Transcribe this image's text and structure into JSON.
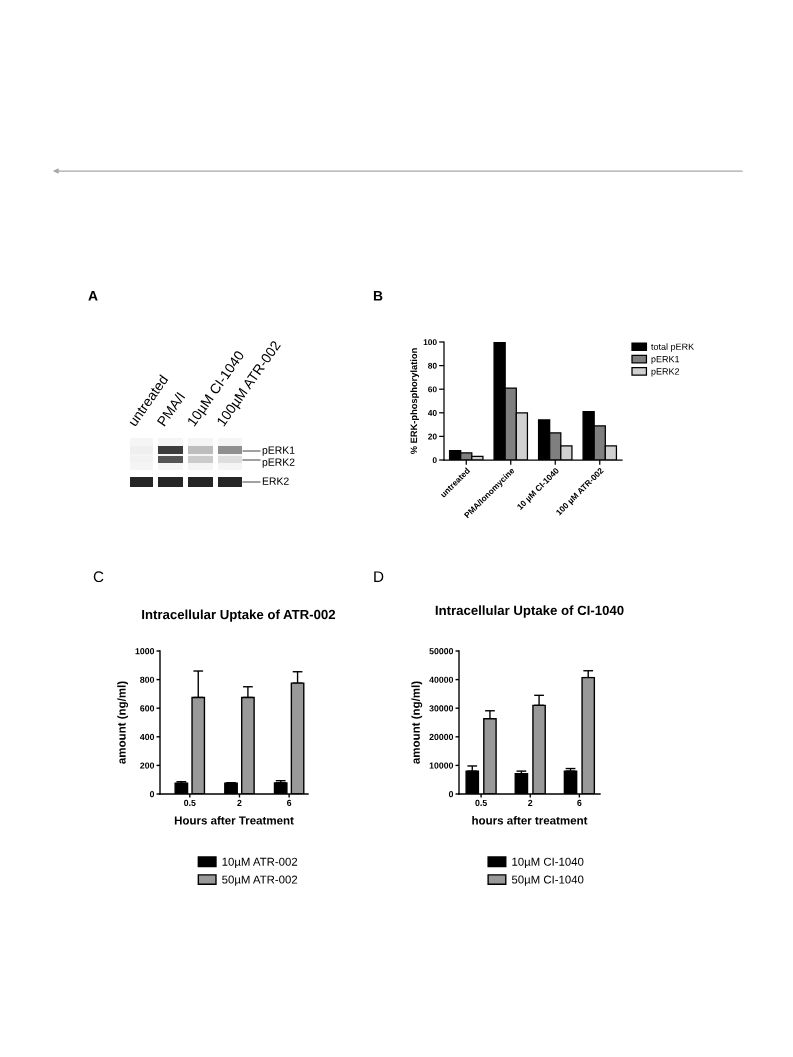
{
  "chart_data": [
    {
      "type": "other",
      "annotations": [
        "A"
      ],
      "categories": [
        "untreated",
        "PMA/I",
        "10µM CI-1040",
        "100µM ATR-002"
      ],
      "y_categories": [
        "pERK1",
        "pERK2",
        "ERK2"
      ]
    },
    {
      "type": "bar",
      "annotations": [
        "B"
      ],
      "ylabel": "% ERK-phosphorylation",
      "categories": [
        "untreated",
        "PMA/Ionomycine",
        "10 µM CI-1040",
        "100 µM ATR-002"
      ],
      "series": [
        {
          "name": "total pERK",
          "color": "#000000",
          "values": [
            8,
            100,
            34,
            41
          ]
        },
        {
          "name": "pERK1",
          "color": "#7f7f7f",
          "values": [
            6,
            61,
            23,
            29
          ]
        },
        {
          "name": "pERK2",
          "color": "#d0d0d0",
          "values": [
            3,
            40,
            12,
            12
          ]
        }
      ],
      "ylim": [
        0,
        100
      ],
      "yticks": [
        0,
        20,
        40,
        60,
        80,
        100
      ],
      "legend": "top right"
    },
    {
      "type": "bar",
      "annotations": [
        "C"
      ],
      "title": "Intracellular Uptake of ATR-002",
      "xlabel": "Hours after Treatment",
      "ylabel": "amount (ng/ml)",
      "categories": [
        "0.5",
        "2",
        "6"
      ],
      "series": [
        {
          "name": "10µM ATR-002",
          "color": "#000000",
          "values": [
            75,
            75,
            78
          ],
          "errors": [
            [
              75,
              86
            ],
            [
              75,
              79
            ],
            [
              78,
              93
            ]
          ]
        },
        {
          "name": "50µM ATR-002",
          "color": "#999999",
          "values": [
            675,
            675,
            775
          ],
          "errors": [
            [
              675,
              860
            ],
            [
              675,
              750
            ],
            [
              775,
              855
            ]
          ]
        }
      ],
      "ylim": [
        0,
        1000
      ],
      "yticks": [
        0,
        200,
        400,
        600,
        800,
        1000
      ],
      "legend": "bottom"
    },
    {
      "type": "bar",
      "annotations": [
        "D"
      ],
      "title": "Intracellular Uptake of CI-1040",
      "xlabel": "hours after treatment",
      "ylabel": "amount (ng/ml)",
      "categories": [
        "0.5",
        "2",
        "6"
      ],
      "series": [
        {
          "name": "10µM CI-1040",
          "color": "#000000",
          "values": [
            8000,
            7100,
            8000
          ],
          "errors": [
            [
              8000,
              9800
            ],
            [
              7100,
              8000
            ],
            [
              8000,
              8900
            ]
          ]
        },
        {
          "name": "50µM CI-1040",
          "color": "#999999",
          "values": [
            26300,
            31000,
            40700
          ],
          "errors": [
            [
              26300,
              29100
            ],
            [
              31000,
              34500
            ],
            [
              40700,
              43100
            ]
          ]
        }
      ],
      "ylim": [
        0,
        50000
      ],
      "yticks": [
        0,
        10000,
        20000,
        30000,
        40000,
        50000
      ],
      "legend": "bottom"
    }
  ]
}
